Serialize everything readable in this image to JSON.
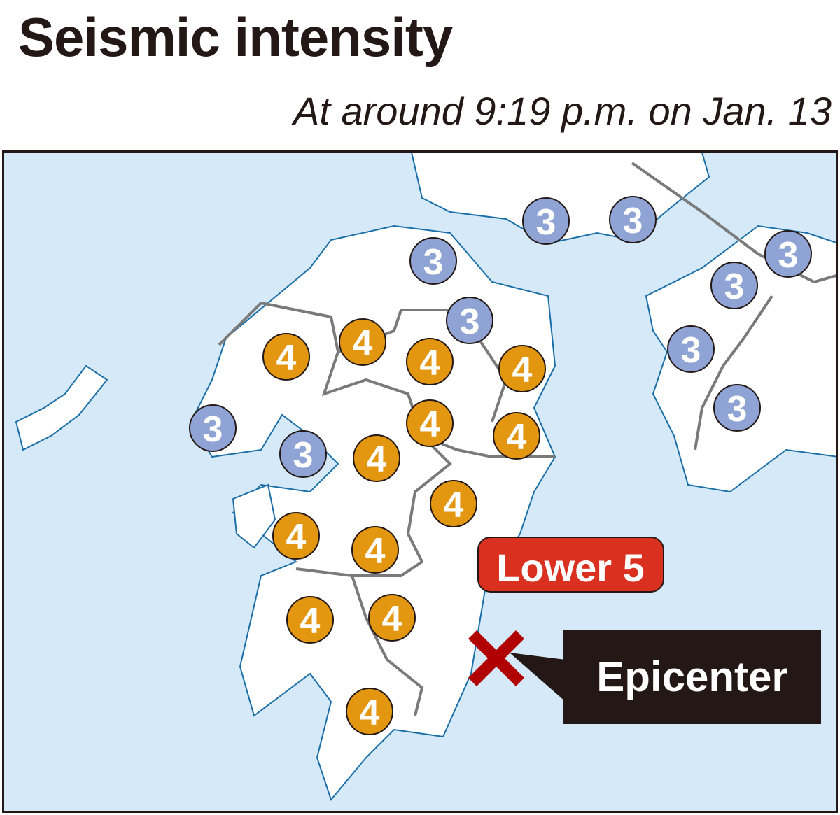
{
  "header": {
    "title": "Seismic intensity",
    "subtitle": "At around 9:19 p.m. on Jan. 13"
  },
  "map": {
    "colors": {
      "sea": "#d6e9f8",
      "land": "#ffffff",
      "coast": "#1b6fa8",
      "prefecture_border": "#7a7a7a",
      "intensity_3": "#8fa3d4",
      "intensity_4": "#e3960f",
      "lower5": "#d9301f",
      "epicenter": "#b00000",
      "callout": "#231815"
    },
    "markers_intensity_3": [
      "3",
      "3",
      "3",
      "3",
      "3",
      "3",
      "3",
      "3",
      "3",
      "3"
    ],
    "markers_intensity_4": [
      "4",
      "4",
      "4",
      "4",
      "4",
      "4",
      "4",
      "4",
      "4",
      "4",
      "4",
      "4",
      "4"
    ],
    "lower5_label": "Lower 5",
    "epicenter_label": "Epicenter",
    "epicenter_icon": "x-mark-icon"
  }
}
